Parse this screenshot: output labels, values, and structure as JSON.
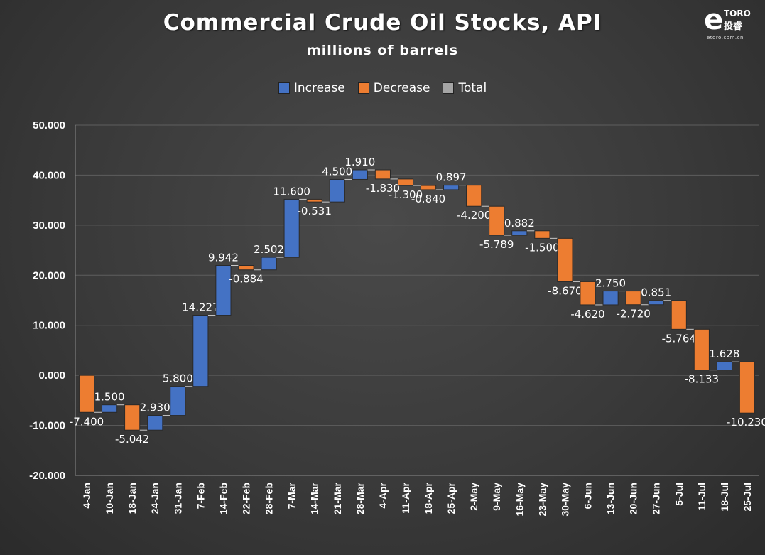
{
  "title": "Commercial Crude Oil Stocks, API",
  "subtitle": "millions of barrels",
  "legend": [
    {
      "label": "Increase",
      "color": "#4472c4"
    },
    {
      "label": "Decrease",
      "color": "#ed7d31"
    },
    {
      "label": "Total",
      "color": "#a5a5a5"
    }
  ],
  "logo": {
    "mark": "e",
    "brand": "TORO",
    "cn": "投睿",
    "url": "etoro.com.cn"
  },
  "chart_data": {
    "type": "bar",
    "subtype": "waterfall",
    "title": "Commercial Crude Oil Stocks, API",
    "subtitle": "millions of barrels",
    "categories": [
      "4-Jan",
      "10-Jan",
      "18-Jan",
      "24-Jan",
      "31-Jan",
      "7-Feb",
      "14-Feb",
      "22-Feb",
      "28-Feb",
      "7-Mar",
      "14-Mar",
      "21-Mar",
      "28-Mar",
      "4-Apr",
      "11-Apr",
      "18-Apr",
      "25-Apr",
      "2-May",
      "9-May",
      "16-May",
      "23-May",
      "30-May",
      "6-Jun",
      "13-Jun",
      "20-Jun",
      "27-Jun",
      "5-Jul",
      "11-Jul",
      "18-Jul",
      "25-Jul"
    ],
    "values": [
      -7.4,
      1.5,
      -5.042,
      2.93,
      5.8,
      14.227,
      9.942,
      -0.884,
      2.502,
      11.6,
      -0.531,
      4.5,
      1.91,
      -1.83,
      -1.3,
      -0.84,
      0.897,
      -4.2,
      -5.789,
      0.882,
      -1.5,
      -8.67,
      -4.62,
      2.75,
      -2.72,
      0.851,
      -5.764,
      -8.133,
      1.628,
      -10.23
    ],
    "value_labels": [
      "-7.400",
      "1.500",
      "-5.042",
      "2.930",
      "5.800",
      "14.227",
      "9.942",
      "-0.884",
      "2.502",
      "11.600",
      "-0.531",
      "4.500",
      "1.910",
      "-1.830",
      "-1.300",
      "-0.840",
      "0.897",
      "-4.200",
      "-5.789",
      "0.882",
      "-1.500",
      "-8.670",
      "-4.620",
      "2.750",
      "-2.720",
      "0.851",
      "-5.764",
      "-8.133",
      "1.628",
      "-10.230"
    ],
    "ylim": [
      -20,
      50
    ],
    "yticks": [
      "50.000",
      "40.000",
      "30.000",
      "20.000",
      "10.000",
      "0.000",
      "-10.000",
      "-20.000"
    ],
    "grid": true,
    "legend_position": "top-center",
    "colors": {
      "increase": "#4472c4",
      "decrease": "#ed7d31",
      "total": "#a5a5a5"
    }
  }
}
